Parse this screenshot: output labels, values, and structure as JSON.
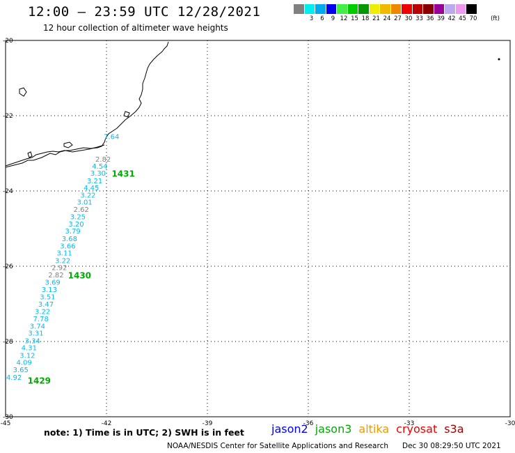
{
  "header": {
    "title": "12:00 – 23:59 UTC 12/28/2021",
    "subtitle": "12 hour collection of altimeter wave heights"
  },
  "color_scale": {
    "unit": "(ft)",
    "colors": [
      "#808080",
      "#00eeee",
      "#00aaee",
      "#0000ee",
      "#44ee44",
      "#00cc00",
      "#009900",
      "#eeee00",
      "#eebb00",
      "#ee8800",
      "#ee0000",
      "#bb0000",
      "#880000",
      "#990099",
      "#bbaaee",
      "#ee99ee",
      "#000000"
    ],
    "labels": [
      "3",
      "6",
      "9",
      "12",
      "15",
      "18",
      "21",
      "24",
      "27",
      "30",
      "33",
      "36",
      "39",
      "42",
      "45",
      "70"
    ]
  },
  "map": {
    "lon_min": -45,
    "lon_max": -30,
    "lat_min": -30,
    "lat_max": -20,
    "lon_ticks": [
      "-45",
      "-42",
      "-39",
      "-36",
      "-33",
      "-30"
    ],
    "lat_ticks": [
      "-20",
      "-22",
      "-24",
      "-26",
      "-28",
      "-30"
    ],
    "grid": "dotted"
  },
  "track": {
    "satellite_color": "#00aa00",
    "time_labels": [
      {
        "text": "1431",
        "lon": -41.5,
        "lat": -23.55
      },
      {
        "text": "1430",
        "lon": -42.8,
        "lat": -26.25
      },
      {
        "text": "1429",
        "lon": -44.0,
        "lat": -29.05
      }
    ],
    "points": [
      {
        "v": "7.64",
        "lon": -41.85,
        "lat": -22.55,
        "c": "#00bbee"
      },
      {
        "v": "2.82",
        "lon": -42.1,
        "lat": -23.15,
        "c": "#808080"
      },
      {
        "v": "4.54",
        "lon": -42.2,
        "lat": -23.33,
        "c": "#00bbee"
      },
      {
        "v": "3.30",
        "lon": -42.25,
        "lat": -23.52,
        "c": "#00bbee"
      },
      {
        "v": "3.21",
        "lon": -42.35,
        "lat": -23.72,
        "c": "#00bbee"
      },
      {
        "v": "4.45",
        "lon": -42.45,
        "lat": -23.91,
        "c": "#00bbee"
      },
      {
        "v": "3.22",
        "lon": -42.55,
        "lat": -24.1,
        "c": "#00bbee"
      },
      {
        "v": "3.01",
        "lon": -42.65,
        "lat": -24.29,
        "c": "#00bbee"
      },
      {
        "v": "2.62",
        "lon": -42.75,
        "lat": -24.48,
        "c": "#808080"
      },
      {
        "v": "3.25",
        "lon": -42.85,
        "lat": -24.68,
        "c": "#00bbee"
      },
      {
        "v": "3.20",
        "lon": -42.9,
        "lat": -24.87,
        "c": "#00bbee"
      },
      {
        "v": "3.79",
        "lon": -43.0,
        "lat": -25.06,
        "c": "#00bbee"
      },
      {
        "v": "3.68",
        "lon": -43.1,
        "lat": -25.26,
        "c": "#00bbee"
      },
      {
        "v": "3.66",
        "lon": -43.15,
        "lat": -25.45,
        "c": "#00bbee"
      },
      {
        "v": "3.11",
        "lon": -43.25,
        "lat": -25.64,
        "c": "#00bbee"
      },
      {
        "v": "3.22",
        "lon": -43.3,
        "lat": -25.84,
        "c": "#00bbee"
      },
      {
        "v": "2.92",
        "lon": -43.4,
        "lat": -26.03,
        "c": "#808080"
      },
      {
        "v": "2.82",
        "lon": -43.5,
        "lat": -26.22,
        "c": "#808080"
      },
      {
        "v": "3.69",
        "lon": -43.6,
        "lat": -26.42,
        "c": "#00bbee"
      },
      {
        "v": "3.13",
        "lon": -43.7,
        "lat": -26.61,
        "c": "#00bbee"
      },
      {
        "v": "3.51",
        "lon": -43.75,
        "lat": -26.81,
        "c": "#00bbee"
      },
      {
        "v": "3.47",
        "lon": -43.8,
        "lat": -27.0,
        "c": "#00bbee"
      },
      {
        "v": "3.22",
        "lon": -43.9,
        "lat": -27.19,
        "c": "#00bbee"
      },
      {
        "v": "7.78",
        "lon": -43.95,
        "lat": -27.39,
        "c": "#00bbee"
      },
      {
        "v": "3.74",
        "lon": -44.05,
        "lat": -27.58,
        "c": "#00bbee"
      },
      {
        "v": "3.31",
        "lon": -44.1,
        "lat": -27.77,
        "c": "#00bbee"
      },
      {
        "v": "3.34",
        "lon": -44.2,
        "lat": -27.97,
        "c": "#00bbee"
      },
      {
        "v": "4.31",
        "lon": -44.3,
        "lat": -28.16,
        "c": "#00bbee"
      },
      {
        "v": "3.12",
        "lon": -44.35,
        "lat": -28.36,
        "c": "#00bbee"
      },
      {
        "v": "4.09",
        "lon": -44.45,
        "lat": -28.55,
        "c": "#00bbee"
      },
      {
        "v": "3.65",
        "lon": -44.55,
        "lat": -28.74,
        "c": "#00bbee"
      },
      {
        "v": "4.92",
        "lon": -44.75,
        "lat": -28.94,
        "c": "#00bbee"
      }
    ]
  },
  "footer": {
    "note": "note: 1) Time is in UTC; 2) SWH is in feet",
    "satellites": [
      {
        "name": "jason2",
        "color": "#0000ee"
      },
      {
        "name": "jason3",
        "color": "#00aa00"
      },
      {
        "name": "altika",
        "color": "#ee9900"
      },
      {
        "name": "cryosat",
        "color": "#ee0000"
      },
      {
        "name": "s3a",
        "color": "#990000"
      }
    ],
    "credit": "NOAA/NESDIS Center for Satellite Applications and Research",
    "timestamp": "Dec 30 08:29:50 UTC 2021"
  }
}
